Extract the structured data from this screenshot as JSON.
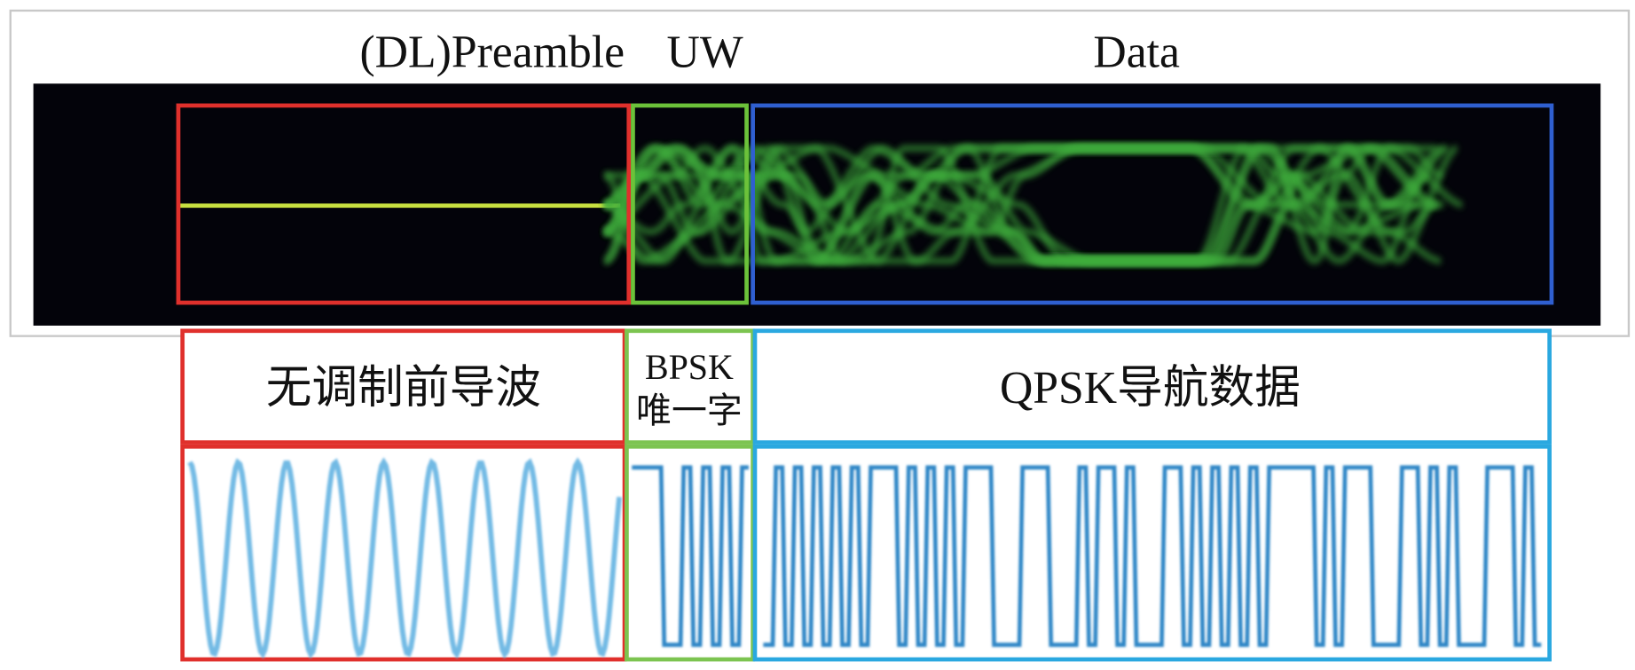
{
  "spectrum_labels": {
    "preamble": "(DL)Preamble",
    "uw": "UW",
    "data": "Data"
  },
  "segment_labels": {
    "preamble": "无调制前导波",
    "uw_line1": "BPSK",
    "uw_line2": "唯一字",
    "data": "QPSK导航数据"
  }
}
